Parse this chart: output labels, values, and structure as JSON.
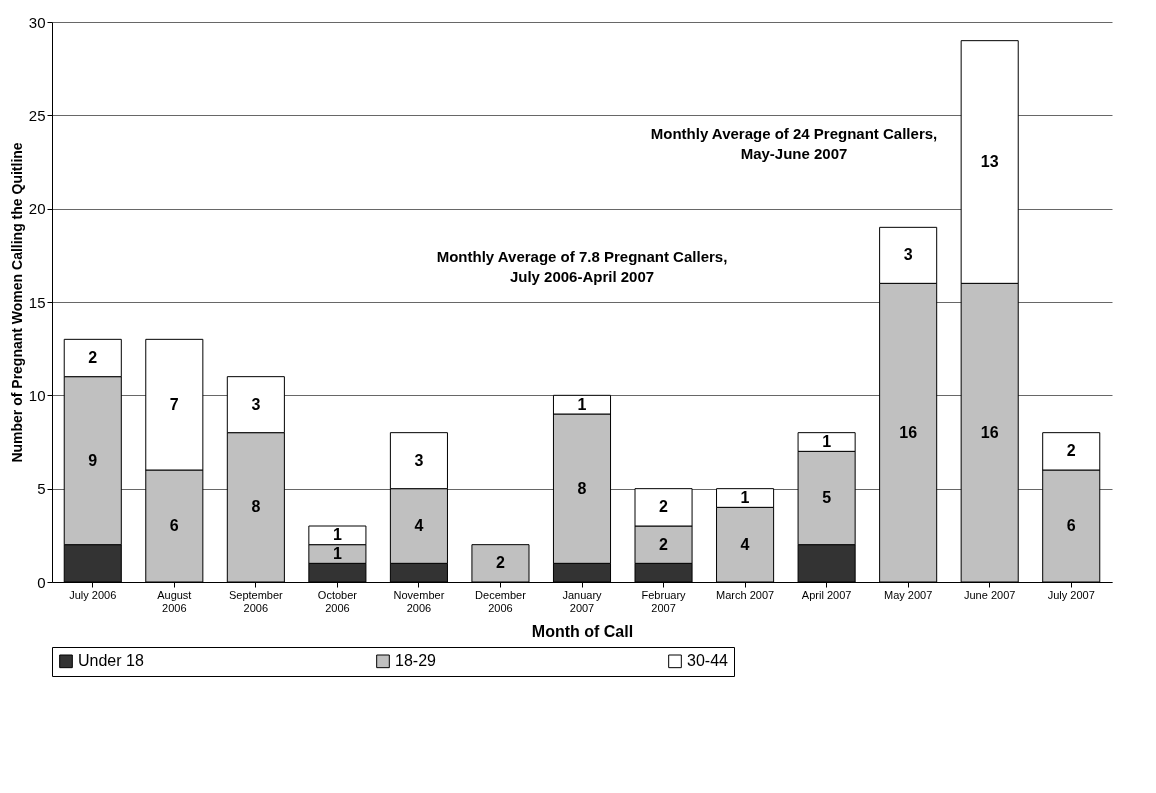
{
  "chart_data": {
    "type": "bar",
    "stacked": true,
    "xlabel": "Month of Call",
    "ylabel": "Number of Pregnant Women Calling the Quitline",
    "categories": [
      "July 2006",
      "August 2006",
      "September 2006",
      "October 2006",
      "November 2006",
      "December 2006",
      "January 2007",
      "February 2007",
      "March 2007",
      "April 2007",
      "May 2007",
      "June 2007",
      "July 2007"
    ],
    "series": [
      {
        "name": "Under 18",
        "color": "#333333",
        "values": [
          2,
          0,
          0,
          1,
          1,
          0,
          1,
          1,
          0,
          2,
          0,
          0,
          0
        ]
      },
      {
        "name": "18-29",
        "color": "#c0c0c0",
        "values": [
          9,
          6,
          8,
          1,
          4,
          2,
          8,
          2,
          4,
          5,
          16,
          16,
          6
        ],
        "value_labels": [
          "9",
          "6",
          "8",
          "1",
          "4",
          "2",
          "8",
          "2",
          "4",
          "5",
          "16",
          "16",
          "6"
        ]
      },
      {
        "name": "30-44",
        "color": "#ffffff",
        "values": [
          2,
          7,
          3,
          1,
          3,
          0,
          1,
          2,
          1,
          1,
          3,
          13,
          2
        ],
        "value_labels": [
          "2",
          "7",
          "3",
          "1",
          "3",
          null,
          "1",
          "2",
          "1",
          "1",
          "3",
          "13",
          "2"
        ]
      }
    ],
    "ylim": [
      0,
      30
    ],
    "yticks": [
      0,
      5,
      10,
      15,
      20,
      25,
      30
    ],
    "grid": "y",
    "legend": "bottom",
    "annotations": [
      "Monthly Average of 7.8 Pregnant Callers,\nJuly 2006-April 2007",
      "Monthly Average of 24 Pregnant Callers,\nMay-June 2007"
    ]
  }
}
